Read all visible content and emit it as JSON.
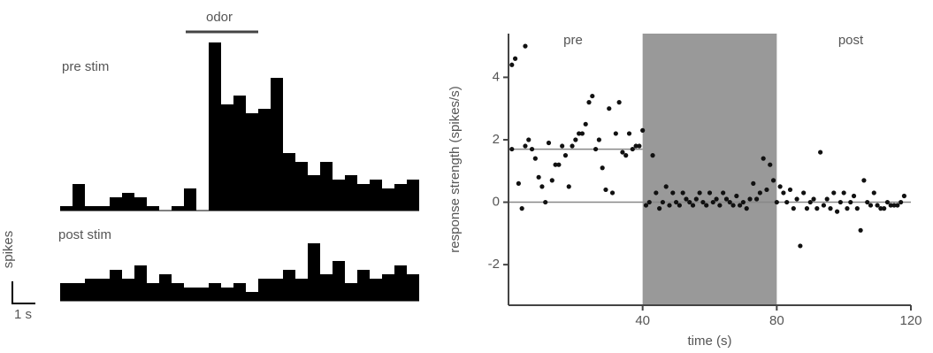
{
  "labels": {
    "odor": "odor",
    "scale_time": "1 s",
    "scale_count": "spikes"
  },
  "chart_data": [
    {
      "type": "bar",
      "title": "pre stim",
      "color": "#000000",
      "categories": [
        null,
        null,
        null,
        null,
        null,
        null,
        null,
        null,
        null,
        null,
        null,
        null,
        null,
        null,
        null,
        null,
        null,
        null,
        null,
        null,
        null,
        null,
        null,
        null,
        null,
        null,
        null,
        null,
        null
      ],
      "values": [
        1,
        6,
        1,
        1,
        3,
        4,
        3,
        1,
        0,
        1,
        5,
        0,
        38,
        24,
        26,
        22,
        23,
        30,
        13,
        11,
        8,
        11,
        7,
        8,
        6,
        7,
        5,
        6,
        7
      ]
    },
    {
      "type": "bar",
      "title": "post stim",
      "color": "#000000",
      "categories": [
        null,
        null,
        null,
        null,
        null,
        null,
        null,
        null,
        null,
        null,
        null,
        null,
        null,
        null,
        null,
        null,
        null,
        null,
        null,
        null,
        null,
        null,
        null,
        null,
        null,
        null,
        null,
        null,
        null
      ],
      "values": [
        4,
        4,
        5,
        5,
        7,
        5,
        8,
        4,
        6,
        4,
        3,
        3,
        4,
        3,
        4,
        2,
        5,
        5,
        7,
        5,
        13,
        6,
        9,
        4,
        7,
        5,
        6,
        8,
        6
      ]
    },
    {
      "type": "scatter",
      "color": "#111111",
      "xlabel": "time (s)",
      "ylabel": "response strength (spikes/s)",
      "xlim": [
        0,
        120
      ],
      "xticks": [
        40,
        80,
        120
      ],
      "ylim": [
        -3.3,
        5.4
      ],
      "yticks": [
        -2,
        0,
        2,
        4
      ],
      "shade": [
        40,
        80
      ],
      "shade_color": "#999999",
      "pre_mean": 1.7,
      "zero_line": 0,
      "annotations": [
        "pre",
        "post"
      ],
      "x": [
        1,
        2,
        5,
        1,
        3,
        4,
        5,
        6,
        7,
        8,
        9,
        10,
        11,
        12,
        13,
        14,
        15,
        16,
        17,
        18,
        19,
        20,
        21,
        22,
        23,
        24,
        25,
        26,
        27,
        28,
        29,
        30,
        31,
        32,
        33,
        34,
        35,
        36,
        37,
        38,
        39,
        40,
        41,
        42,
        43,
        44,
        45,
        46,
        47,
        48,
        49,
        50,
        51,
        52,
        53,
        54,
        55,
        56,
        57,
        58,
        59,
        60,
        61,
        62,
        63,
        64,
        65,
        66,
        67,
        68,
        69,
        70,
        71,
        72,
        73,
        74,
        75,
        76,
        77,
        78,
        79,
        80,
        81,
        82,
        83,
        84,
        85,
        86,
        87,
        88,
        89,
        90,
        91,
        92,
        93,
        94,
        95,
        96,
        97,
        98,
        99,
        100,
        101,
        102,
        103,
        104,
        105,
        106,
        107,
        108,
        109,
        110,
        111,
        112,
        113,
        114,
        115,
        116,
        117,
        118
      ],
      "values": [
        4.4,
        4.6,
        5.0,
        1.7,
        0.6,
        -0.2,
        1.8,
        2.0,
        1.7,
        1.4,
        0.8,
        0.5,
        0.0,
        1.9,
        0.7,
        1.2,
        1.2,
        1.8,
        1.5,
        0.5,
        1.8,
        2.0,
        2.2,
        2.2,
        2.5,
        3.2,
        3.4,
        1.7,
        2.0,
        1.1,
        0.4,
        3.0,
        0.3,
        2.2,
        3.2,
        1.6,
        1.5,
        2.2,
        1.7,
        1.8,
        1.8,
        2.3,
        -0.1,
        0.0,
        1.5,
        0.3,
        -0.2,
        0.0,
        0.5,
        -0.1,
        0.3,
        0.0,
        -0.1,
        0.3,
        0.1,
        0.0,
        -0.1,
        0.1,
        0.3,
        0.0,
        -0.1,
        0.3,
        0.0,
        0.1,
        -0.1,
        0.3,
        0.1,
        0.0,
        -0.1,
        0.2,
        -0.1,
        0.0,
        -0.2,
        0.1,
        0.6,
        0.1,
        0.3,
        1.4,
        0.4,
        1.2,
        0.7,
        0.0,
        0.5,
        0.3,
        0.0,
        0.4,
        -0.2,
        0.1,
        -1.4,
        0.3,
        -0.2,
        0.0,
        0.1,
        -0.2,
        1.6,
        -0.1,
        0.1,
        -0.2,
        0.3,
        -0.3,
        0.0,
        0.3,
        -0.2,
        0.0,
        0.2,
        -0.2,
        -0.9,
        0.7,
        0.0,
        -0.1,
        0.3,
        -0.1,
        -0.2,
        -0.2,
        0.0,
        -0.1,
        -0.1,
        -0.1,
        0.0,
        0.2
      ]
    }
  ]
}
